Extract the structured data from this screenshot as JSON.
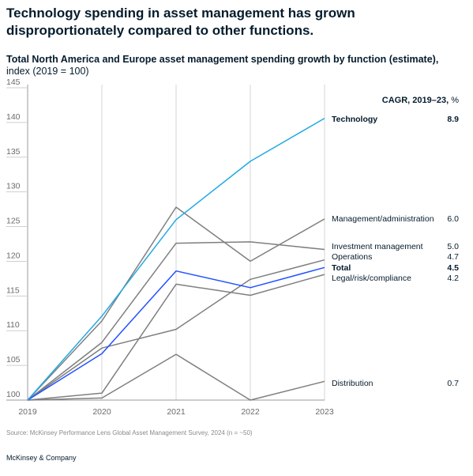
{
  "headline": "Technology spending in asset management has grown disproportionately compared to other functions.",
  "subtitle_bold": "Total North America and Europe asset management spending growth by function (estimate),",
  "subtitle_rest": "index (2019 = 100)",
  "cagr_header_bold": "CAGR, 2019–23,",
  "cagr_header_unit": "%",
  "source": "Source: McKinsey Performance Lens Global Asset Management Survey, 2024 (n = ~50)",
  "brand": "McKinsey & Company",
  "colors": {
    "technology": "#22a9e2",
    "total": "#2251ff",
    "other": "#7f7f7f",
    "grid": "#d6d6d6",
    "text": "#051c2c"
  },
  "chart_data": {
    "type": "line",
    "x": [
      "2019",
      "2020",
      "2021",
      "2022",
      "2023"
    ],
    "ylim": [
      100,
      145
    ],
    "yticks": [
      100,
      105,
      110,
      115,
      120,
      125,
      130,
      135,
      140,
      145
    ],
    "grid": "vertical",
    "series": [
      {
        "name": "Technology",
        "cagr": "8.9",
        "values": [
          100,
          112.1,
          126.0,
          134.4,
          140.6
        ],
        "style": "technology",
        "bold": true
      },
      {
        "name": "Management/administration",
        "cagr": "6.0",
        "values": [
          100,
          111.4,
          127.8,
          120.0,
          126.1
        ],
        "style": "other",
        "bold": false
      },
      {
        "name": "Investment management",
        "cagr": "5.0",
        "values": [
          100,
          108.3,
          122.6,
          122.8,
          121.7
        ],
        "style": "other",
        "bold": false
      },
      {
        "name": "Operations",
        "cagr": "4.7",
        "values": [
          100,
          107.5,
          110.2,
          117.4,
          120.2
        ],
        "style": "other",
        "bold": false
      },
      {
        "name": "Total",
        "cagr": "4.5",
        "values": [
          100,
          106.7,
          118.6,
          116.2,
          119.1
        ],
        "style": "total",
        "bold": true
      },
      {
        "name": "Legal/risk/compliance",
        "cagr": "4.2",
        "values": [
          100,
          101.0,
          116.7,
          115.1,
          118.1
        ],
        "style": "other",
        "bold": false
      },
      {
        "name": "Distribution",
        "cagr": "0.7",
        "values": [
          100,
          100.3,
          106.6,
          100.0,
          102.7
        ],
        "style": "other",
        "bold": false
      }
    ]
  }
}
